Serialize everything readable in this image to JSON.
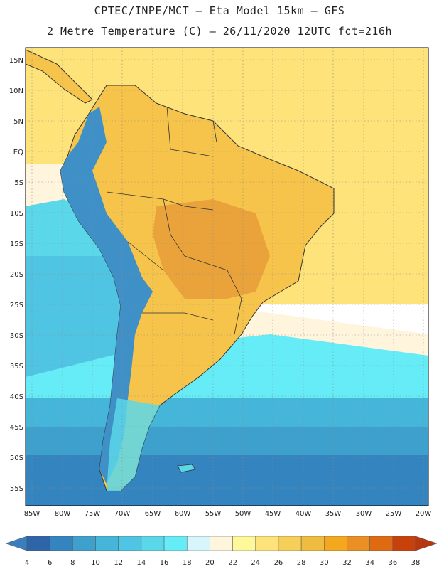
{
  "header": {
    "line1": "CPTEC/INPE/MCT –  Eta Model 15km – GFS",
    "line2": "2 Metre Temperature (C) – 26/11/2020 12UTC fct=216h"
  },
  "map": {
    "lat_labels": [
      "15N",
      "10N",
      "5N",
      "EQ",
      "5S",
      "10S",
      "15S",
      "20S",
      "25S",
      "30S",
      "35S",
      "40S",
      "45S",
      "50S",
      "55S"
    ],
    "lon_labels": [
      "85W",
      "80W",
      "75W",
      "70W",
      "65W",
      "60W",
      "55W",
      "50W",
      "45W",
      "40W",
      "35W",
      "30W",
      "25W",
      "20W"
    ],
    "colors": {
      "ocean_warm": "#fde37a",
      "land_warm": "#f6c44a",
      "land_hot": "#eaa33a",
      "andes": "#3f90c6"
    }
  },
  "colorbar": {
    "labels": [
      "4",
      "6",
      "8",
      "10",
      "12",
      "14",
      "16",
      "18",
      "20",
      "22",
      "24",
      "26",
      "28",
      "30",
      "32",
      "34",
      "36",
      "38"
    ],
    "colors": [
      "#2e64a8",
      "#3484bf",
      "#3ea0cc",
      "#45b6d9",
      "#4fc5e3",
      "#5ad8ea",
      "#66ecf6",
      "#d6f6fc",
      "#fff5dc",
      "#fff89a",
      "#fde37a",
      "#f6cf5a",
      "#efbc40",
      "#f3a81e",
      "#ea8f24",
      "#de6b12",
      "#c8410c"
    ]
  }
}
